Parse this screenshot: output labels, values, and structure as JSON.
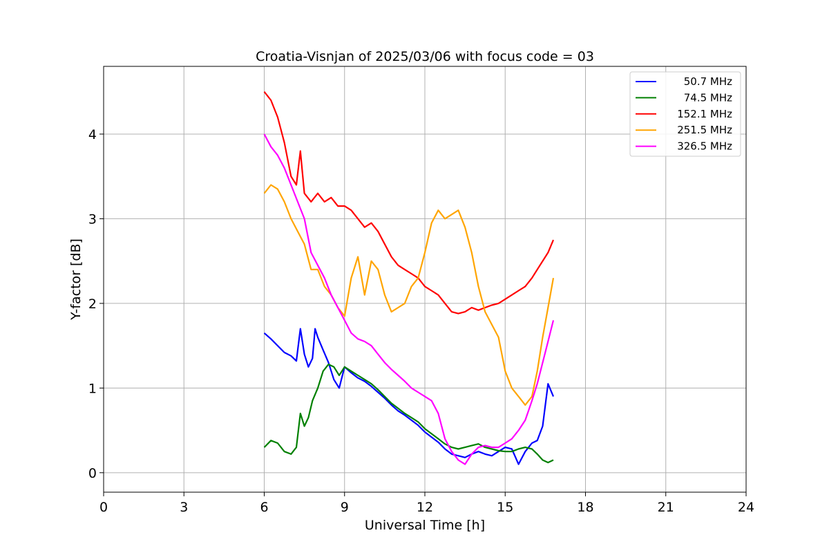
{
  "chart_data": {
    "type": "line",
    "title": "Croatia-Visnjan of 2025/03/06 with focus code = 03",
    "xlabel": "Universal Time [h]",
    "ylabel": "Y-factor [dB]",
    "xlim": [
      0,
      24
    ],
    "ylim": [
      -0.23,
      4.8
    ],
    "xticks": [
      0,
      3,
      6,
      9,
      12,
      15,
      18,
      21,
      24
    ],
    "yticks": [
      0,
      1,
      2,
      3,
      4
    ],
    "grid": true,
    "legend_position": "top-right",
    "series": [
      {
        "name": "50.7 MHz",
        "color": "#0000ff",
        "x": [
          6.0,
          6.25,
          6.5,
          6.75,
          7.0,
          7.2,
          7.35,
          7.5,
          7.65,
          7.8,
          7.9,
          8.0,
          8.2,
          8.4,
          8.6,
          8.8,
          9.0,
          9.25,
          9.5,
          9.75,
          10.0,
          10.25,
          10.5,
          10.75,
          11.0,
          11.25,
          11.5,
          11.75,
          12.0,
          12.25,
          12.5,
          12.75,
          13.0,
          13.25,
          13.5,
          13.75,
          14.0,
          14.25,
          14.5,
          14.75,
          15.0,
          15.25,
          15.5,
          15.75,
          16.0,
          16.2,
          16.4,
          16.6,
          16.8
        ],
        "y": [
          1.65,
          1.58,
          1.5,
          1.42,
          1.38,
          1.32,
          1.7,
          1.4,
          1.25,
          1.35,
          1.7,
          1.6,
          1.45,
          1.3,
          1.1,
          1.0,
          1.25,
          1.18,
          1.12,
          1.08,
          1.02,
          0.95,
          0.88,
          0.8,
          0.73,
          0.68,
          0.62,
          0.56,
          0.48,
          0.42,
          0.36,
          0.28,
          0.22,
          0.2,
          0.18,
          0.22,
          0.25,
          0.22,
          0.2,
          0.25,
          0.3,
          0.28,
          0.1,
          0.25,
          0.35,
          0.38,
          0.55,
          1.05,
          0.9
        ]
      },
      {
        "name": "74.5 MHz",
        "color": "#008000",
        "x": [
          6.0,
          6.25,
          6.5,
          6.75,
          7.0,
          7.2,
          7.35,
          7.5,
          7.65,
          7.8,
          8.0,
          8.2,
          8.4,
          8.6,
          8.8,
          9.0,
          9.25,
          9.5,
          9.75,
          10.0,
          10.25,
          10.5,
          10.75,
          11.0,
          11.25,
          11.5,
          11.75,
          12.0,
          12.25,
          12.5,
          12.75,
          13.0,
          13.25,
          13.5,
          13.75,
          14.0,
          14.25,
          14.5,
          14.75,
          15.0,
          15.25,
          15.5,
          15.75,
          16.0,
          16.2,
          16.4,
          16.6,
          16.8
        ],
        "y": [
          0.3,
          0.38,
          0.35,
          0.25,
          0.22,
          0.3,
          0.7,
          0.55,
          0.65,
          0.85,
          1.0,
          1.2,
          1.28,
          1.25,
          1.15,
          1.25,
          1.2,
          1.15,
          1.1,
          1.05,
          0.98,
          0.9,
          0.82,
          0.76,
          0.7,
          0.65,
          0.6,
          0.52,
          0.46,
          0.4,
          0.34,
          0.3,
          0.28,
          0.3,
          0.32,
          0.34,
          0.3,
          0.28,
          0.26,
          0.25,
          0.25,
          0.28,
          0.3,
          0.28,
          0.22,
          0.15,
          0.12,
          0.15
        ]
      },
      {
        "name": "152.1 MHz",
        "color": "#ff0000",
        "x": [
          6.0,
          6.25,
          6.5,
          6.75,
          7.0,
          7.2,
          7.35,
          7.5,
          7.75,
          8.0,
          8.25,
          8.5,
          8.75,
          9.0,
          9.25,
          9.5,
          9.75,
          10.0,
          10.25,
          10.5,
          10.75,
          11.0,
          11.25,
          11.5,
          11.75,
          12.0,
          12.25,
          12.5,
          12.75,
          13.0,
          13.25,
          13.5,
          13.75,
          14.0,
          14.25,
          14.5,
          14.75,
          15.0,
          15.25,
          15.5,
          15.75,
          16.0,
          16.2,
          16.4,
          16.6,
          16.8
        ],
        "y": [
          4.5,
          4.4,
          4.2,
          3.9,
          3.5,
          3.4,
          3.8,
          3.3,
          3.2,
          3.3,
          3.2,
          3.25,
          3.15,
          3.15,
          3.1,
          3.0,
          2.9,
          2.95,
          2.85,
          2.7,
          2.55,
          2.45,
          2.4,
          2.35,
          2.3,
          2.2,
          2.15,
          2.1,
          2.0,
          1.9,
          1.88,
          1.9,
          1.95,
          1.92,
          1.95,
          1.98,
          2.0,
          2.05,
          2.1,
          2.15,
          2.2,
          2.3,
          2.4,
          2.5,
          2.6,
          2.75
        ]
      },
      {
        "name": "251.5 MHz",
        "color": "#ffa500",
        "x": [
          6.0,
          6.25,
          6.5,
          6.75,
          7.0,
          7.25,
          7.5,
          7.75,
          8.0,
          8.25,
          8.5,
          8.75,
          9.0,
          9.25,
          9.5,
          9.75,
          10.0,
          10.25,
          10.5,
          10.75,
          11.0,
          11.25,
          11.5,
          11.75,
          12.0,
          12.25,
          12.5,
          12.75,
          13.0,
          13.25,
          13.5,
          13.75,
          14.0,
          14.25,
          14.5,
          14.75,
          15.0,
          15.25,
          15.5,
          15.75,
          16.0,
          16.2,
          16.4,
          16.6,
          16.8
        ],
        "y": [
          3.3,
          3.4,
          3.35,
          3.2,
          3.0,
          2.85,
          2.7,
          2.4,
          2.4,
          2.2,
          2.1,
          1.95,
          1.85,
          2.3,
          2.55,
          2.1,
          2.5,
          2.4,
          2.1,
          1.9,
          1.95,
          2.0,
          2.2,
          2.3,
          2.6,
          2.95,
          3.1,
          3.0,
          3.05,
          3.1,
          2.9,
          2.6,
          2.2,
          1.9,
          1.75,
          1.6,
          1.2,
          1.0,
          0.9,
          0.8,
          0.9,
          1.2,
          1.6,
          1.95,
          2.3
        ]
      },
      {
        "name": "326.5 MHz",
        "color": "#ff00ff",
        "x": [
          6.0,
          6.25,
          6.5,
          6.75,
          7.0,
          7.25,
          7.5,
          7.75,
          8.0,
          8.25,
          8.5,
          8.75,
          9.0,
          9.25,
          9.5,
          9.75,
          10.0,
          10.25,
          10.5,
          10.75,
          11.0,
          11.25,
          11.5,
          11.75,
          12.0,
          12.25,
          12.5,
          12.75,
          13.0,
          13.25,
          13.5,
          13.75,
          14.0,
          14.25,
          14.5,
          14.75,
          15.0,
          15.25,
          15.5,
          15.75,
          16.0,
          16.2,
          16.4,
          16.6,
          16.8
        ],
        "y": [
          4.0,
          3.85,
          3.75,
          3.6,
          3.4,
          3.2,
          3.0,
          2.6,
          2.45,
          2.3,
          2.1,
          1.95,
          1.8,
          1.65,
          1.58,
          1.55,
          1.5,
          1.4,
          1.3,
          1.22,
          1.15,
          1.08,
          1.0,
          0.95,
          0.9,
          0.85,
          0.7,
          0.4,
          0.25,
          0.15,
          0.1,
          0.22,
          0.3,
          0.32,
          0.3,
          0.3,
          0.35,
          0.4,
          0.5,
          0.62,
          0.85,
          1.05,
          1.3,
          1.55,
          1.8
        ]
      }
    ]
  }
}
